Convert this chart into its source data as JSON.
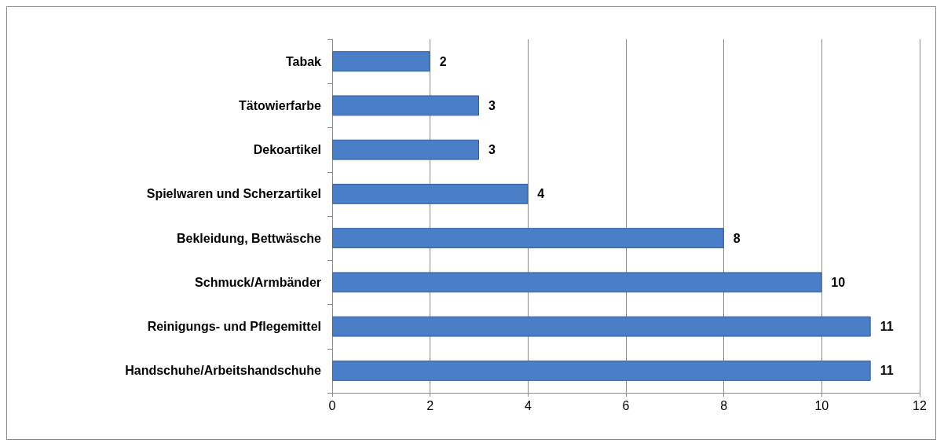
{
  "chart_data": {
    "type": "bar",
    "orientation": "horizontal",
    "categories": [
      "Tabak",
      "Tätowierfarbe",
      "Dekoartikel",
      "Spielwaren und Scherzartikel",
      "Bekleidung, Bettwäsche",
      "Schmuck/Armbänder",
      "Reinigungs- und Pflegemittel",
      "Handschuhe/Arbeitshandschuhe"
    ],
    "values": [
      2,
      3,
      3,
      4,
      8,
      10,
      11,
      11
    ],
    "color": "#4a7fc8",
    "xlim": [
      0,
      12
    ],
    "xticks": [
      0,
      2,
      4,
      6,
      8,
      10,
      12
    ],
    "grid": "x",
    "data_labels": true
  }
}
